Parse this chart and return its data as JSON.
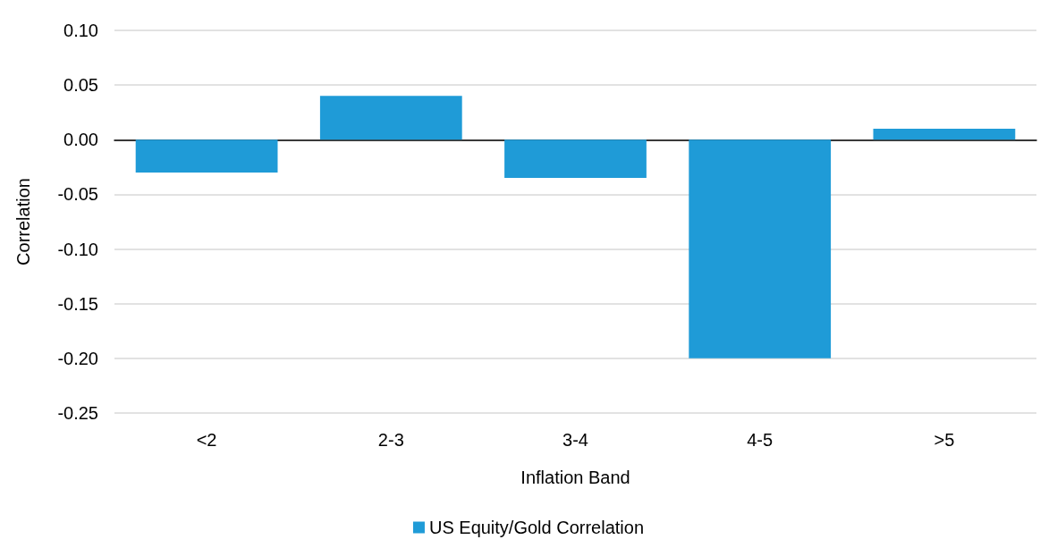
{
  "chart_data": {
    "type": "bar",
    "xlabel": "Inflation Band",
    "ylabel": "Correlation",
    "categories": [
      "<2",
      "2-3",
      "3-4",
      "4-5",
      ">5"
    ],
    "series": [
      {
        "name": "US Equity/Gold Correlation",
        "color": "#1f9bd7",
        "values": [
          -0.03,
          0.04,
          -0.035,
          -0.2,
          0.01
        ]
      }
    ],
    "ylim": [
      -0.25,
      0.1
    ],
    "yticks": [
      {
        "value": -0.25,
        "label": "-0.25"
      },
      {
        "value": -0.2,
        "label": "-0.20"
      },
      {
        "value": -0.15,
        "label": "-0.15"
      },
      {
        "value": -0.1,
        "label": "-0.10"
      },
      {
        "value": -0.05,
        "label": "-0.05"
      },
      {
        "value": 0,
        "label": "0.00"
      },
      {
        "value": 0.05,
        "label": "0.05"
      },
      {
        "value": 0.1,
        "label": "0.10"
      }
    ],
    "grid": "y",
    "legend": "bottom"
  }
}
